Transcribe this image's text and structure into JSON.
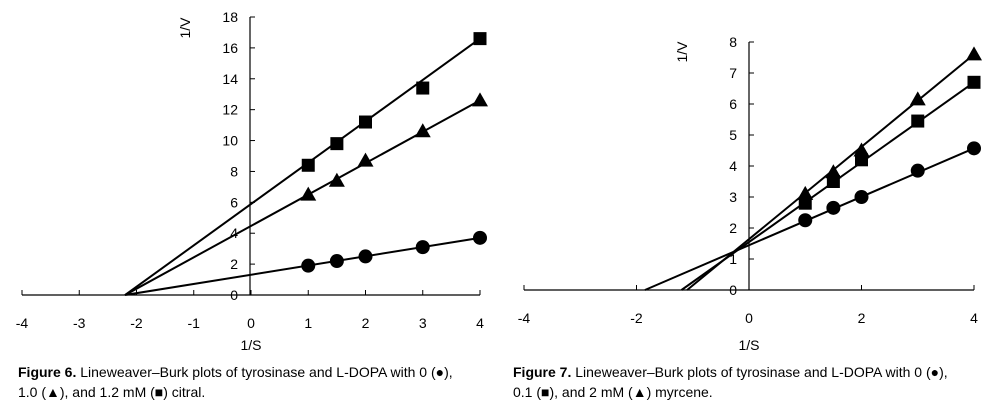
{
  "figures": [
    {
      "caption_label": "Figure 6.",
      "caption_line1": "Lineweaver–Burk plots of tyrosinase and L-DOPA with 0 (●),",
      "caption_line2": "1.0 (▲), and 1.2 mM (■) citral."
    },
    {
      "caption_label": "Figure 7.",
      "caption_line1": "Lineweaver–Burk plots of tyrosinase and L-DOPA with 0 (●),",
      "caption_line2": "0.1 (■), and 2 mM (▲) myrcene."
    }
  ],
  "chart_data": [
    {
      "type": "scatter",
      "title": "",
      "xlabel": "1/S",
      "ylabel": "1/V",
      "xlim": [
        -4,
        4
      ],
      "ylim": [
        0,
        18
      ],
      "xticks": [
        -4,
        -3,
        -2,
        -1,
        0,
        1,
        2,
        3,
        4
      ],
      "yticks": [
        0,
        2,
        4,
        6,
        8,
        10,
        12,
        14,
        16,
        18
      ],
      "grid": false,
      "series": [
        {
          "marker": "circle",
          "x": [
            1,
            1.5,
            2,
            3,
            4
          ],
          "y": [
            1.9,
            2.2,
            2.5,
            3.1,
            3.7
          ],
          "fit_line": {
            "x": [
              -2.2,
              4
            ],
            "y": [
              0,
              3.7
            ]
          }
        },
        {
          "marker": "triangle",
          "x": [
            1,
            1.5,
            2,
            3,
            4
          ],
          "y": [
            6.5,
            7.4,
            8.7,
            10.6,
            12.6
          ],
          "fit_line": {
            "x": [
              -2.2,
              4
            ],
            "y": [
              0,
              12.6
            ]
          }
        },
        {
          "marker": "square",
          "x": [
            1,
            1.5,
            2,
            3,
            4
          ],
          "y": [
            8.4,
            9.8,
            11.2,
            13.4,
            16.6
          ],
          "fit_line": {
            "x": [
              -2.2,
              4
            ],
            "y": [
              0,
              16.6
            ]
          }
        }
      ]
    },
    {
      "type": "scatter",
      "title": "",
      "xlabel": "1/S",
      "ylabel": "1/V",
      "xlim": [
        -4,
        4
      ],
      "ylim": [
        0,
        8
      ],
      "xticks": [
        -4,
        -2,
        0,
        2,
        4
      ],
      "yticks": [
        0,
        1,
        2,
        3,
        4,
        5,
        6,
        7,
        8
      ],
      "grid": false,
      "series": [
        {
          "marker": "circle",
          "x": [
            1,
            1.5,
            2,
            3,
            4
          ],
          "y": [
            2.25,
            2.65,
            3.0,
            3.85,
            4.57
          ],
          "fit_line": {
            "x": [
              -1.85,
              4
            ],
            "y": [
              0,
              4.57
            ]
          }
        },
        {
          "marker": "square",
          "x": [
            1,
            1.5,
            2,
            3,
            4
          ],
          "y": [
            2.8,
            3.5,
            4.2,
            5.45,
            6.7
          ],
          "fit_line": {
            "x": [
              -1.2,
              4
            ],
            "y": [
              0,
              6.7
            ]
          }
        },
        {
          "marker": "triangle",
          "x": [
            1,
            1.5,
            2,
            3,
            4
          ],
          "y": [
            3.1,
            3.8,
            4.5,
            6.15,
            7.6
          ],
          "fit_line": {
            "x": [
              -1.1,
              4
            ],
            "y": [
              0,
              7.6
            ]
          }
        }
      ]
    }
  ]
}
